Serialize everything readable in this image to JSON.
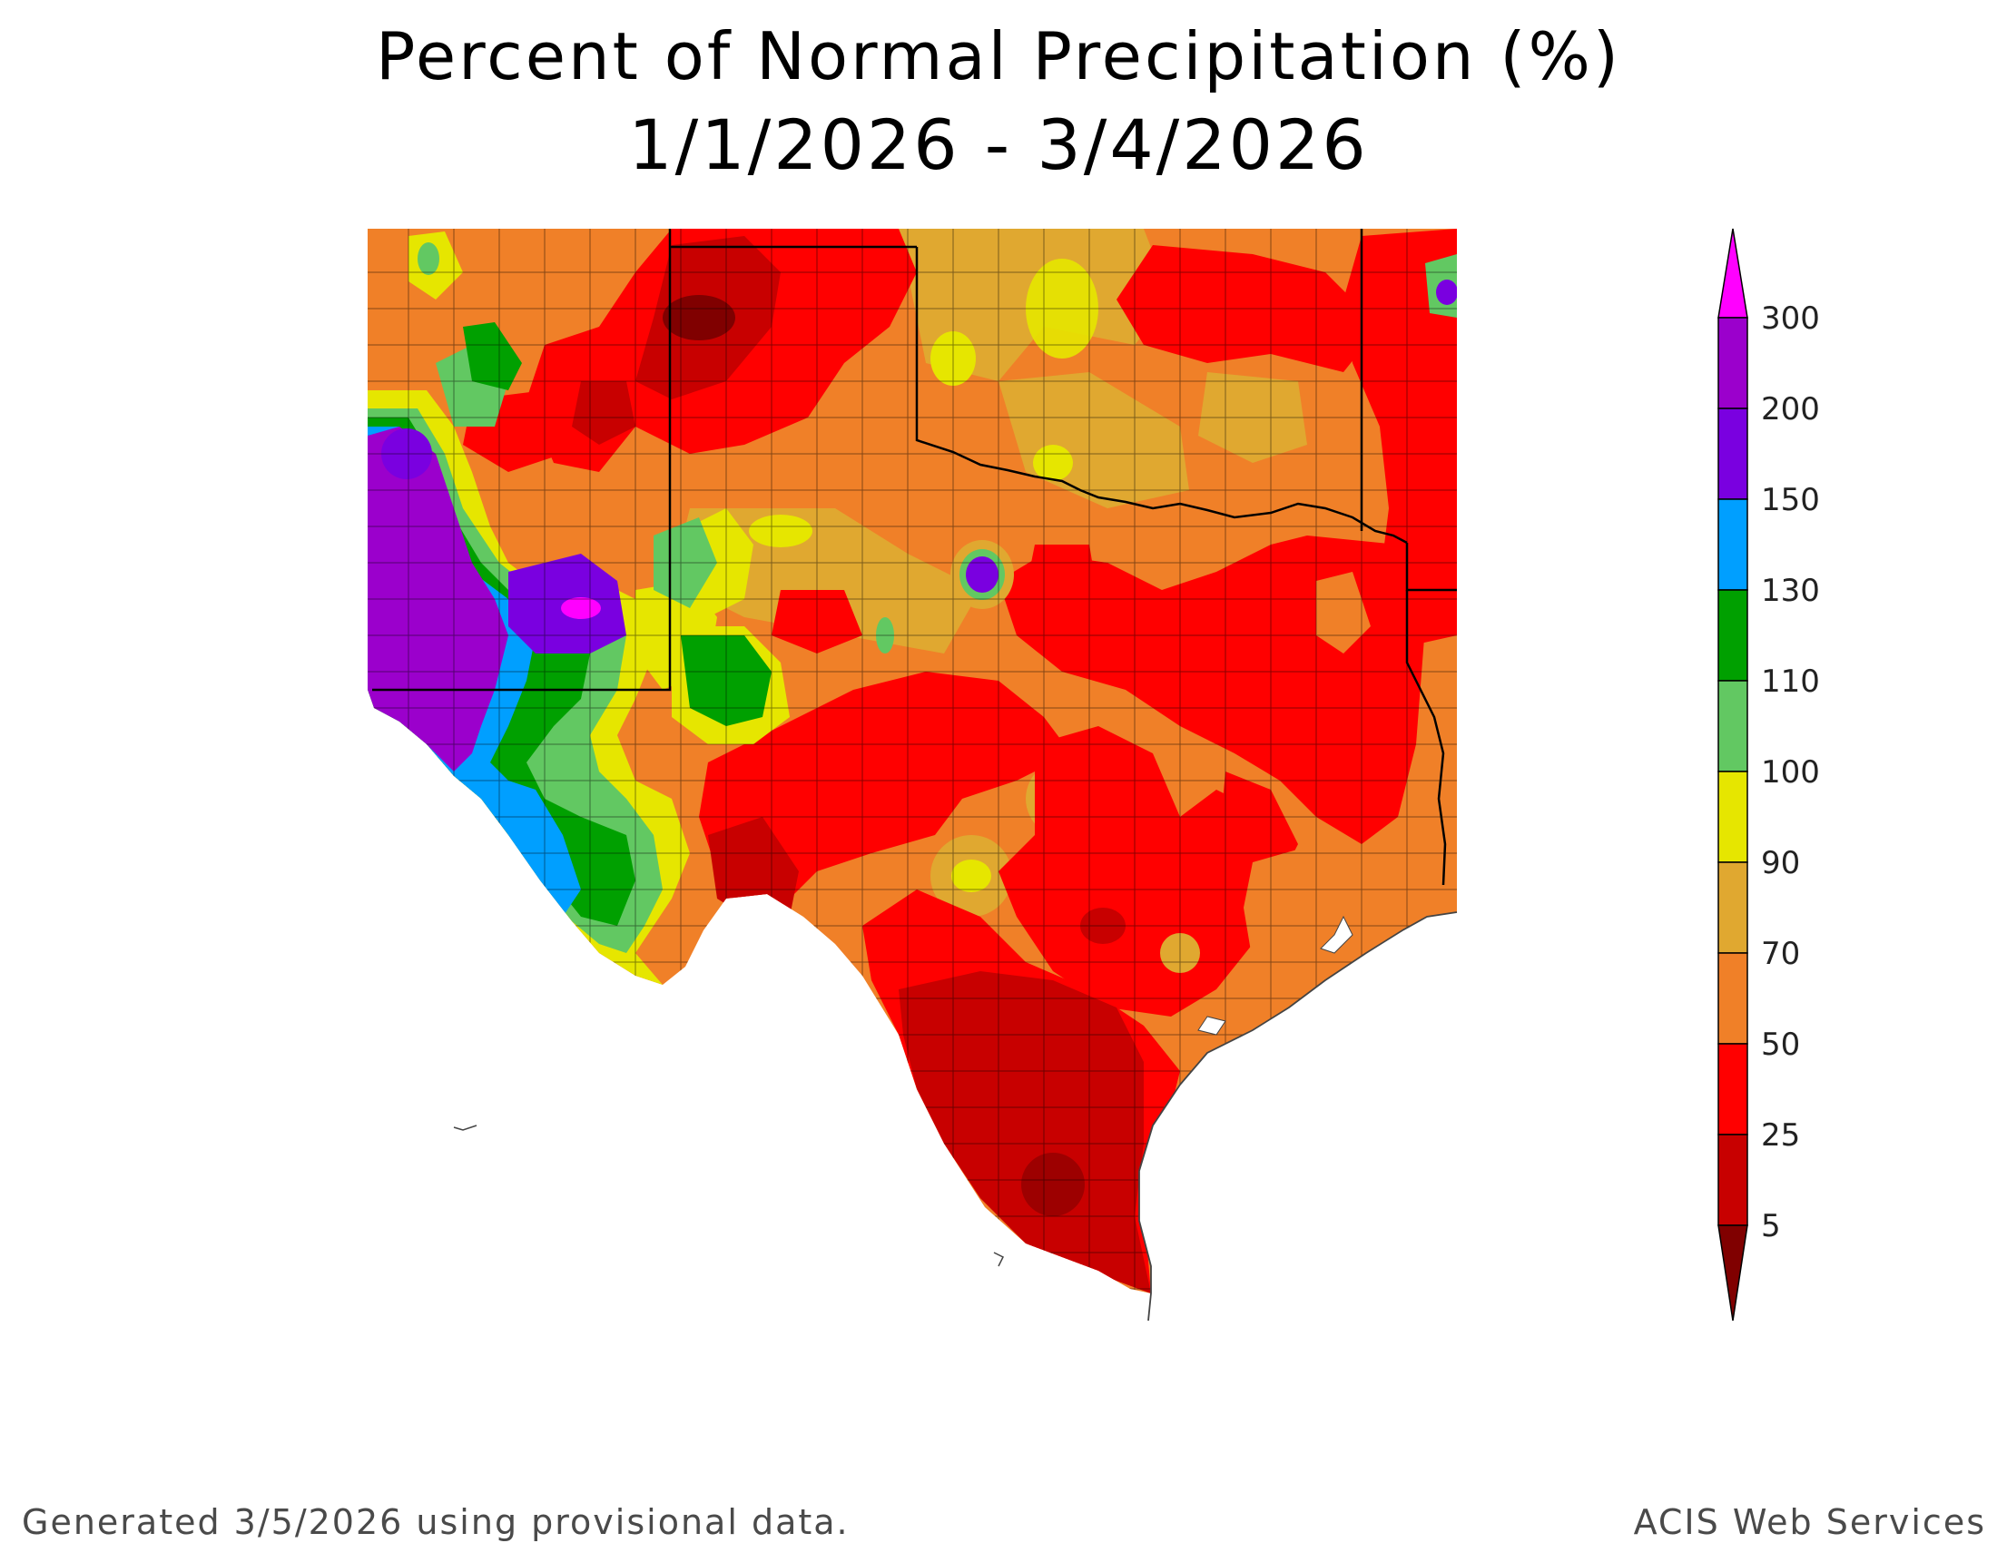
{
  "title": {
    "line1": "Percent of Normal Precipitation (%)",
    "line2": "1/1/2026 - 3/4/2026"
  },
  "legend": {
    "labels": [
      "300",
      "200",
      "150",
      "130",
      "110",
      "100",
      "90",
      "70",
      "50",
      "25",
      "5"
    ],
    "colors": {
      "gt300": "#ff00ff",
      "200-300": "#9b00cc",
      "150-200": "#7a00e0",
      "130-150": "#009fff",
      "110-130": "#00a000",
      "100-110": "#62c862",
      "90-100": "#e6e600",
      "70-90": "#e0a830",
      "50-70": "#f08028",
      "25-50": "#ff0000",
      "5-25": "#c80000",
      "lt5": "#800000"
    }
  },
  "footer": {
    "left": "Generated 3/5/2026  using provisional data.",
    "right": "ACIS Web Services"
  }
}
